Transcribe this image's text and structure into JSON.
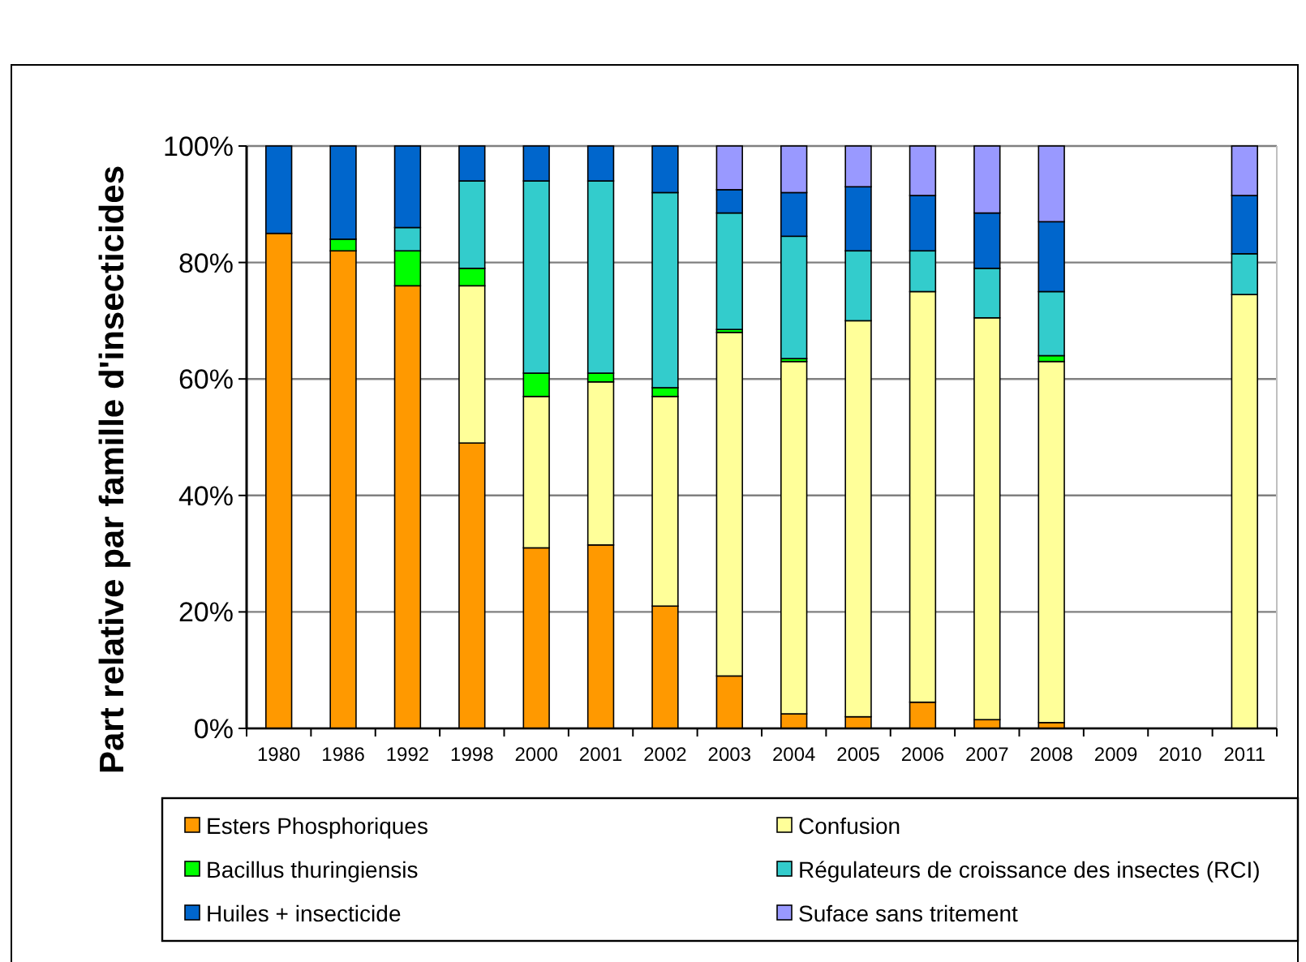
{
  "chart_data": {
    "type": "bar",
    "stacked": true,
    "ylabel": "Part relative par famille d'insecticides",
    "categories": [
      "1980",
      "1986",
      "1992",
      "1998",
      "2000",
      "2001",
      "2002",
      "2003",
      "2004",
      "2005",
      "2006",
      "2007",
      "2008",
      "2009",
      "2010",
      "2011"
    ],
    "series": [
      {
        "name": "Esters Phosphoriques",
        "color": "#ff9900",
        "values": [
          85,
          82,
          76,
          49,
          31,
          31.5,
          21,
          9,
          2.5,
          2,
          4.5,
          1.5,
          1,
          null,
          null,
          0
        ]
      },
      {
        "name": "Confusion",
        "color": "#ffff99",
        "values": [
          0,
          0,
          0,
          27,
          26,
          28,
          36,
          59,
          60.5,
          68,
          70.5,
          69,
          62,
          null,
          null,
          74.5
        ]
      },
      {
        "name": "Bacillus thuringiensis",
        "color": "#00ff00",
        "values": [
          0,
          2,
          6,
          3,
          4,
          1.5,
          1.5,
          0.5,
          0.5,
          0,
          0,
          0,
          1,
          null,
          null,
          0
        ]
      },
      {
        "name": "Régulateurs de croissance des insectes (RCI)",
        "color": "#33cccc",
        "values": [
          0,
          0,
          4,
          15,
          33,
          33,
          33.5,
          20,
          21,
          12,
          7,
          8.5,
          11,
          null,
          null,
          7
        ]
      },
      {
        "name": "Huiles + insecticide",
        "color": "#0066cc",
        "values": [
          15,
          16,
          14,
          6,
          6,
          6,
          8,
          4,
          7.5,
          11,
          9.5,
          9.5,
          12,
          null,
          null,
          10
        ]
      },
      {
        "name": "Suface sans tritement",
        "color": "#9999ff",
        "values": [
          0,
          0,
          0,
          0,
          0,
          0,
          0,
          7.5,
          8,
          7,
          8.5,
          11.5,
          13,
          null,
          null,
          8.5
        ]
      }
    ],
    "ylim": [
      0,
      100
    ],
    "yticks": [
      {
        "value": 0,
        "label": "0%"
      },
      {
        "value": 20,
        "label": "20%"
      },
      {
        "value": 40,
        "label": "40%"
      },
      {
        "value": 60,
        "label": "60%"
      },
      {
        "value": 80,
        "label": "80%"
      },
      {
        "value": 100,
        "label": "100%"
      }
    ],
    "grid": "y",
    "legend": "bottom"
  }
}
